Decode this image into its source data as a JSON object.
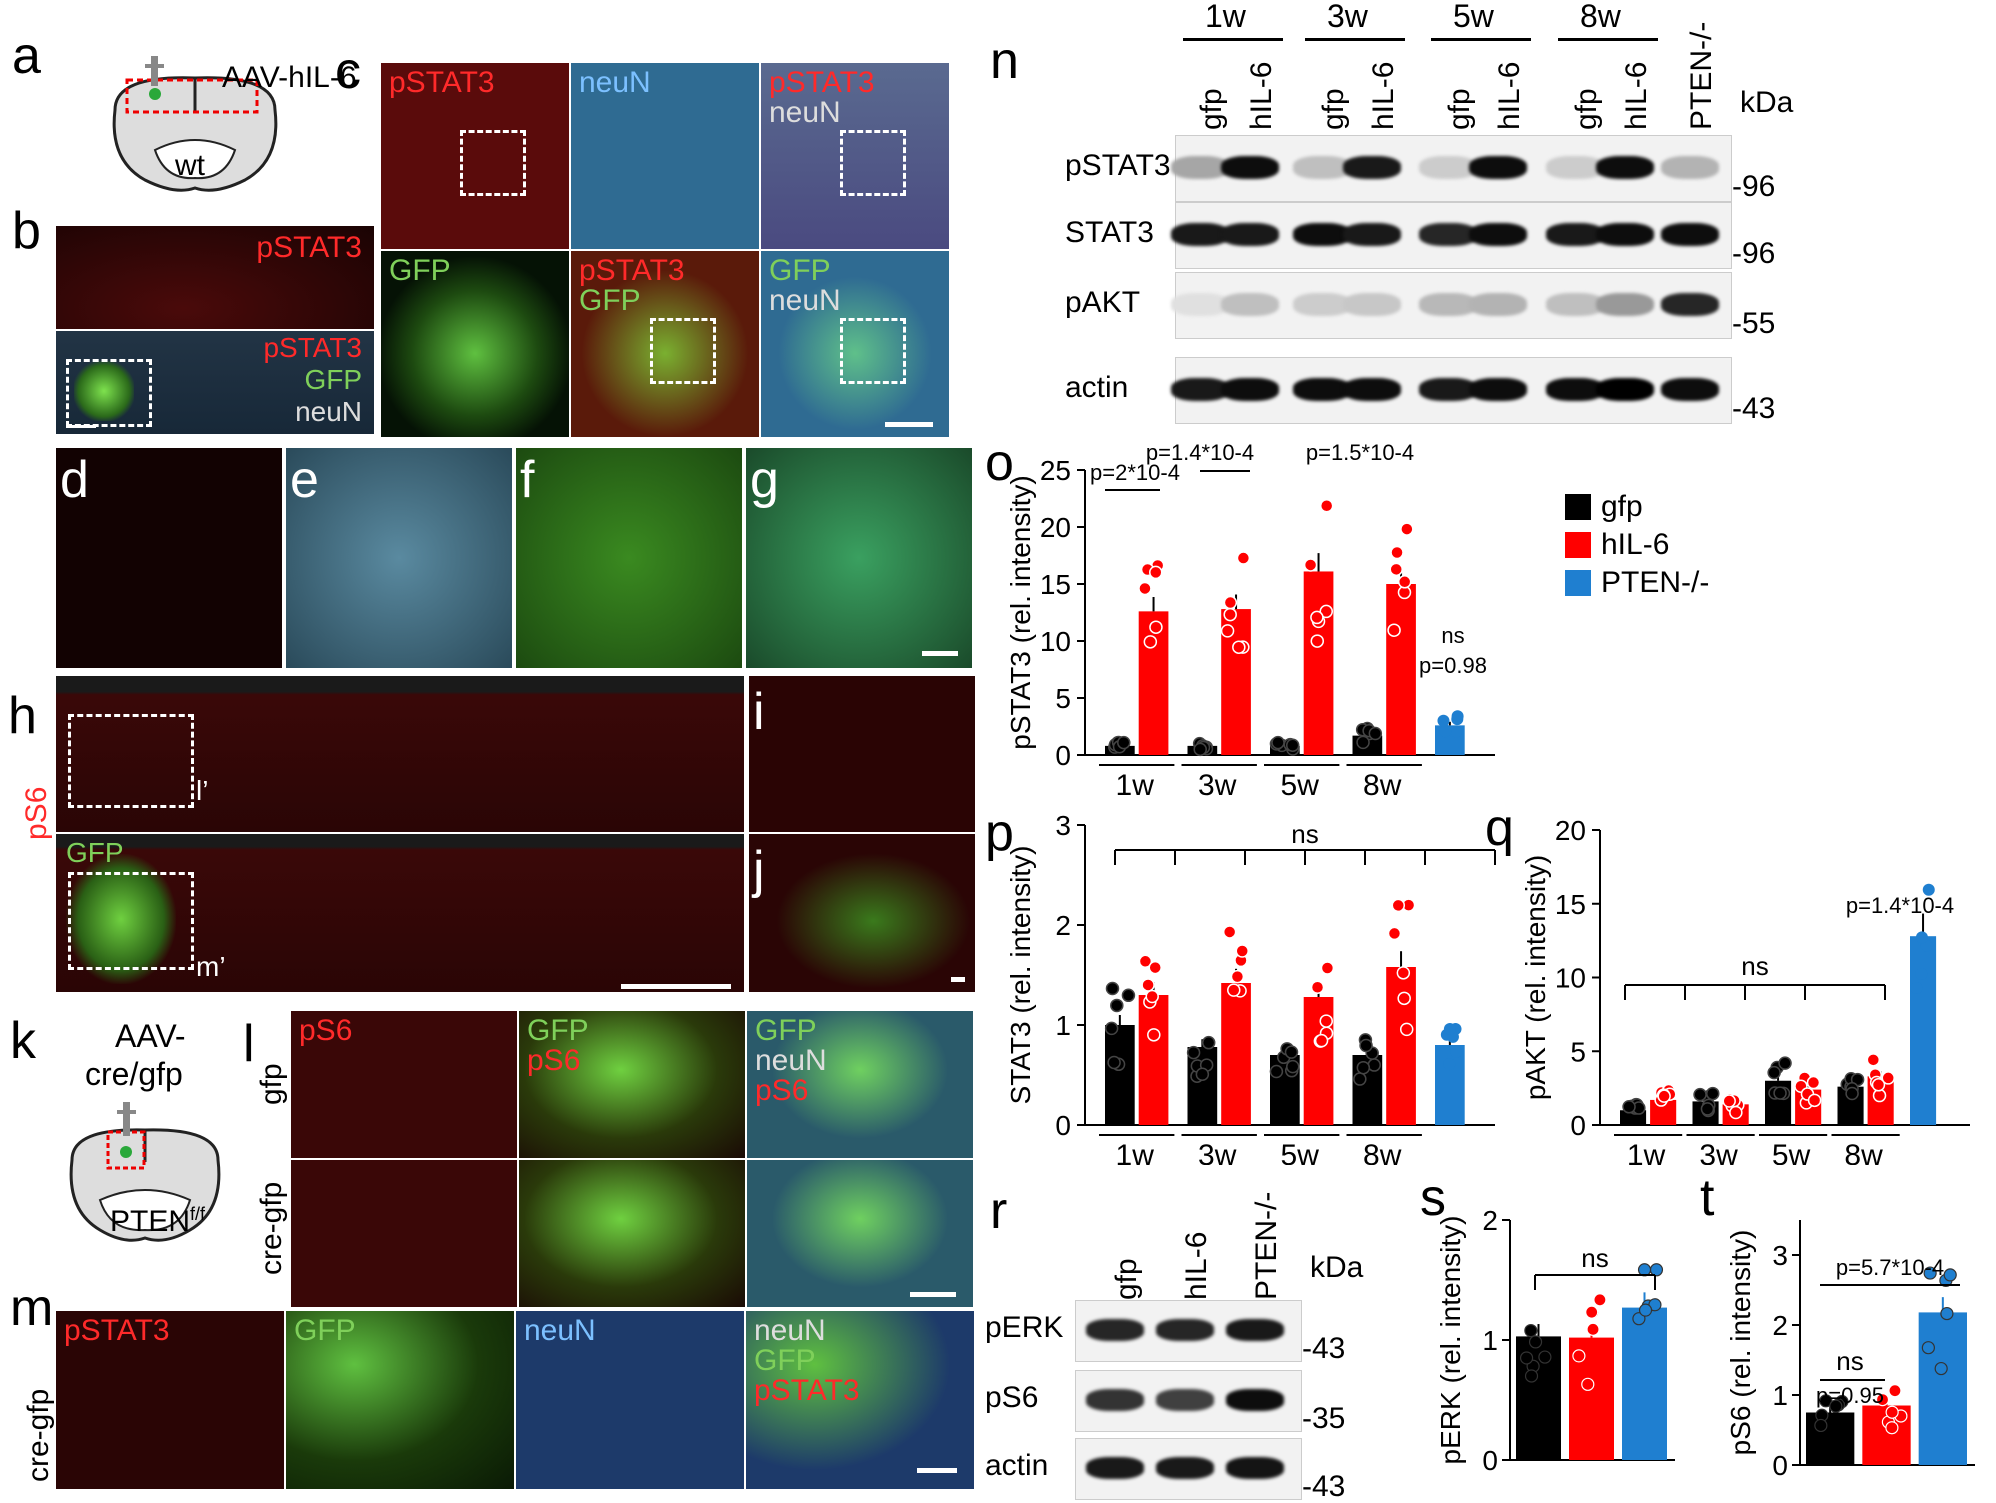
{
  "panels": {
    "a": {
      "label": "a",
      "construct": "AAV-hIL-6",
      "mouse": "wt"
    },
    "b": {
      "label": "b",
      "top_channel": "pSTAT3",
      "bottom_channels": [
        "pSTAT3",
        "GFP",
        "neuN"
      ]
    },
    "c": {
      "label": "c",
      "tiles": [
        [
          "pSTAT3"
        ],
        [
          "neuN"
        ],
        [
          "pSTAT3",
          "neuN"
        ],
        [
          "GFP"
        ],
        [
          "pSTAT3",
          "GFP"
        ],
        [
          "GFP",
          "neuN"
        ]
      ]
    },
    "d": {
      "label": "d"
    },
    "e": {
      "label": "e"
    },
    "f": {
      "label": "f"
    },
    "g": {
      "label": "g"
    },
    "h": {
      "label": "h",
      "side_label": "pS6",
      "bottom_channel": "GFP",
      "inset_top": "l’",
      "inset_bottom": "m’"
    },
    "i": {
      "label": "i"
    },
    "j": {
      "label": "j"
    },
    "k": {
      "label": "k",
      "construct_line1": "AAV-",
      "construct_line2": "cre/gfp",
      "mouse": "PTEN",
      "mouse_sup": "f/f"
    },
    "l": {
      "label": "l",
      "row_labels": [
        "gfp",
        "cre-gfp"
      ],
      "col_labels": [
        [
          "pS6"
        ],
        [
          "GFP",
          "pS6"
        ],
        [
          "GFP",
          "neuN",
          "pS6"
        ]
      ]
    },
    "m": {
      "label": "m",
      "row_label": "cre-gfp",
      "col_labels": [
        [
          "pSTAT3"
        ],
        [
          "GFP"
        ],
        [
          "neuN"
        ],
        [
          "neuN",
          "GFP",
          "pSTAT3"
        ]
      ]
    },
    "n": {
      "label": "n",
      "timepoints": [
        "1w",
        "3w",
        "5w",
        "8w"
      ],
      "lanes": [
        "gfp",
        "hIL-6",
        "gfp",
        "hIL-6",
        "gfp",
        "hIL-6",
        "gfp",
        "hIL-6",
        "PTEN-/-"
      ],
      "rows": [
        "pSTAT3",
        "STAT3",
        "pAKT",
        "actin"
      ],
      "kda_label": "kDa",
      "kda": [
        "-96",
        "-96",
        "-55",
        "-43"
      ]
    },
    "o": {
      "label": "o"
    },
    "p": {
      "label": "p"
    },
    "q": {
      "label": "q"
    },
    "r": {
      "label": "r",
      "lanes": [
        "gfp",
        "hIL-6",
        "PTEN-/-"
      ],
      "rows": [
        "pERK",
        "pS6",
        "actin"
      ],
      "kda_label": "kDa",
      "kda": [
        "-43",
        "-35",
        "-43"
      ]
    },
    "s": {
      "label": "s"
    },
    "t": {
      "label": "t"
    }
  },
  "legend": [
    {
      "name": "gfp",
      "color": "#000000"
    },
    {
      "name": "hIL-6",
      "color": "#ff0000"
    },
    {
      "name": "PTEN-/-",
      "color": "#1f7fd0"
    }
  ],
  "chart_data": [
    {
      "id": "o",
      "type": "bar",
      "categories": [
        "1w",
        "3w",
        "5w",
        "8w"
      ],
      "ylabel": "pSTAT3 (rel. intensity)",
      "ylim": [
        0,
        25
      ],
      "yticks": [
        0,
        5,
        10,
        15,
        20,
        25
      ],
      "series": [
        {
          "name": "gfp",
          "values": [
            0.8,
            0.8,
            0.8,
            1.7
          ]
        },
        {
          "name": "hIL-6",
          "values": [
            12.6,
            12.8,
            16.1,
            15.0
          ]
        }
      ],
      "extra_bar": {
        "name": "PTEN-/-",
        "value": 2.6
      },
      "annotations": [
        "p=2*10-4",
        "p=1.4*10-4",
        "p=1.5*10-4",
        "p=1.5*10-4",
        "ns",
        "p=0.98"
      ]
    },
    {
      "id": "p",
      "type": "bar",
      "categories": [
        "1w",
        "3w",
        "5w",
        "8w"
      ],
      "ylabel": "STAT3 (rel. intensity)",
      "ylim": [
        0,
        3
      ],
      "yticks": [
        0,
        1,
        2,
        3
      ],
      "series": [
        {
          "name": "gfp",
          "values": [
            1.0,
            0.78,
            0.7,
            0.7
          ]
        },
        {
          "name": "hIL-6",
          "values": [
            1.3,
            1.42,
            1.28,
            1.58
          ]
        }
      ],
      "extra_bar": {
        "name": "PTEN-/-",
        "value": 0.8
      },
      "annotations": [
        "ns"
      ]
    },
    {
      "id": "q",
      "type": "bar",
      "categories": [
        "1w",
        "3w",
        "5w",
        "8w"
      ],
      "ylabel": "pAKT (rel. intensity)",
      "ylim": [
        0,
        20
      ],
      "yticks": [
        0,
        5,
        10,
        15,
        20
      ],
      "series": [
        {
          "name": "gfp",
          "values": [
            1.0,
            1.6,
            3.0,
            2.6
          ]
        },
        {
          "name": "hIL-6",
          "values": [
            1.7,
            1.4,
            2.4,
            3.3
          ]
        }
      ],
      "extra_bar": {
        "name": "PTEN-/-",
        "value": 12.8
      },
      "annotations": [
        "ns",
        "p=1.4*10-4"
      ]
    },
    {
      "id": "s",
      "type": "bar",
      "categories": [
        "gfp",
        "hIL-6",
        "PTEN-/-"
      ],
      "ylabel": "pERK (rel. intensity)",
      "ylim": [
        0,
        2
      ],
      "yticks": [
        0,
        1,
        2
      ],
      "values": [
        1.03,
        1.02,
        1.27
      ],
      "annotations": [
        "ns"
      ]
    },
    {
      "id": "t",
      "type": "bar",
      "categories": [
        "gfp",
        "hIL-6",
        "PTEN-/-"
      ],
      "ylabel": "pS6 (rel. intensity)",
      "ylim": [
        0,
        3.5
      ],
      "yticks": [
        0,
        1,
        2,
        3
      ],
      "values": [
        0.75,
        0.85,
        2.18
      ],
      "annotations": [
        "p=5.7*10-4",
        "ns",
        "p=0.95"
      ]
    }
  ]
}
